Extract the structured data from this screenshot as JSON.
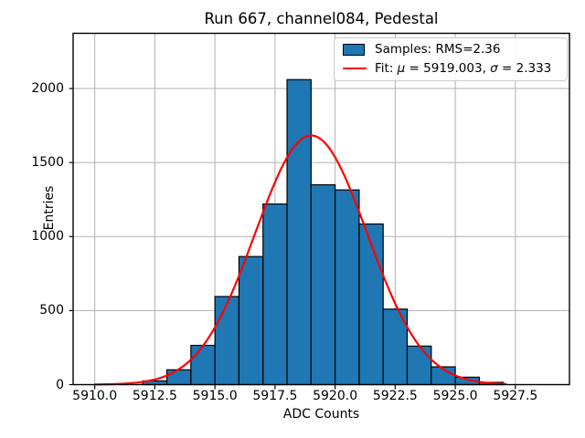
{
  "chart_data": {
    "type": "bar",
    "subtype": "histogram",
    "title": "Run 667, channel084, Pedestal",
    "xlabel": "ADC Counts",
    "ylabel": "Entries",
    "xlim": [
      5909.1,
      5929.75
    ],
    "ylim": [
      0,
      2373
    ],
    "grid": true,
    "x_ticks": [
      {
        "v": 5910.0,
        "label": "5910.0"
      },
      {
        "v": 5912.5,
        "label": "5912.5"
      },
      {
        "v": 5915.0,
        "label": "5915.0"
      },
      {
        "v": 5917.5,
        "label": "5917.5"
      },
      {
        "v": 5920.0,
        "label": "5920.0"
      },
      {
        "v": 5922.5,
        "label": "5922.5"
      },
      {
        "v": 5925.0,
        "label": "5925.0"
      },
      {
        "v": 5927.5,
        "label": "5927.5"
      }
    ],
    "y_ticks": [
      {
        "v": 0,
        "label": "0"
      },
      {
        "v": 500,
        "label": "500"
      },
      {
        "v": 1000,
        "label": "1000"
      },
      {
        "v": 1500,
        "label": "1500"
      },
      {
        "v": 2000,
        "label": "2000"
      }
    ],
    "histogram": {
      "bin_start": 5912,
      "bin_width": 1,
      "counts": [
        25,
        100,
        265,
        595,
        865,
        1220,
        2060,
        1350,
        1315,
        1085,
        510,
        260,
        120,
        50,
        15
      ]
    },
    "fit": {
      "shape": "gaussian",
      "amplitude": 1683,
      "mu": 5919.003,
      "sigma": 2.333,
      "x_start": 5910.0,
      "x_end": 5927.1
    },
    "colors": {
      "bar_fill": "#1f77b4",
      "bar_edge": "#000000",
      "fit_line": "#ff0000",
      "grid": "#b0b0b0",
      "spine": "#000000",
      "text": "#000000",
      "legend_border": "#cccccc"
    },
    "legend": {
      "position": "upper right",
      "entries": [
        {
          "swatch": "patch",
          "segments": [
            {
              "text": "Samples: RMS=2.36",
              "italic": false
            }
          ]
        },
        {
          "swatch": "line",
          "segments": [
            {
              "text": "Fit: ",
              "italic": false
            },
            {
              "text": "μ",
              "italic": true
            },
            {
              "text": " = 5919.003, ",
              "italic": false
            },
            {
              "text": "σ",
              "italic": true
            },
            {
              "text": " = 2.333",
              "italic": false
            }
          ]
        }
      ]
    }
  }
}
